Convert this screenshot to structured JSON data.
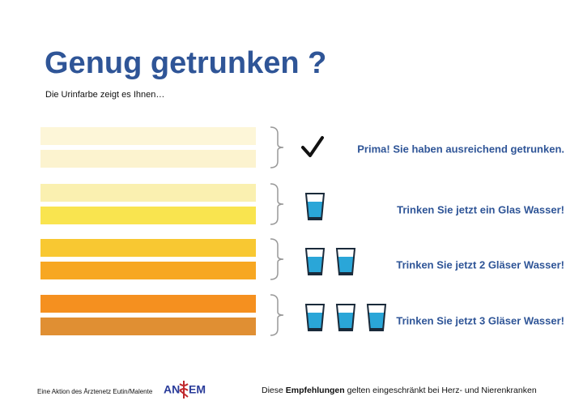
{
  "header": {
    "title": "Genug getrunken ?",
    "subtitle": "Die Urinfarbe zeigt es Ihnen…"
  },
  "groups": [
    {
      "bars": [
        "#fdf6d8",
        "#fcf3cf"
      ],
      "icon": "check",
      "glasses": 0,
      "message": "Prima! Sie haben ausreichend getrunken."
    },
    {
      "bars": [
        "#faf0b0",
        "#f9e44f"
      ],
      "icon": "glass",
      "glasses": 1,
      "message": "Trinken Sie jetzt ein Glas Wasser!"
    },
    {
      "bars": [
        "#f8c832",
        "#f7a722"
      ],
      "icon": "glass",
      "glasses": 2,
      "message": "Trinken Sie jetzt 2 Gläser Wasser!"
    },
    {
      "bars": [
        "#f5901f",
        "#e08f33"
      ],
      "icon": "glass",
      "glasses": 3,
      "message": "Trinken Sie jetzt 3 Gläser Wasser!"
    }
  ],
  "footer": {
    "left": "Eine Aktion des Ärztenetz Eutin/Malente",
    "logo": [
      "AN",
      "EM"
    ],
    "note": [
      "Diese ",
      "Empfehlungen",
      " gelten eingeschränkt bei Herz- und Nierenkranken"
    ]
  }
}
